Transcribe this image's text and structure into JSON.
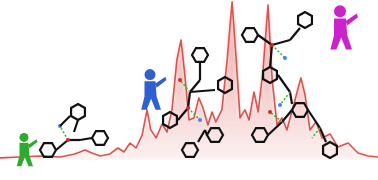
{
  "chart_data": {
    "type": "line",
    "x": [
      0,
      5.3,
      10.6,
      15.9,
      19.8,
      22.5,
      24.3,
      26.5,
      29.1,
      31.2,
      32.8,
      34.4,
      36,
      37.6,
      38.9,
      39.9,
      41.3,
      42.9,
      44.2,
      45.5,
      46.8,
      47.9,
      48.9,
      50,
      51.3,
      52.6,
      53.7,
      55,
      56.1,
      57.1,
      58.7,
      60.1,
      61.4,
      62.4,
      63.5,
      64.8,
      65.9,
      67.2,
      68.3,
      69.6,
      70.9,
      72,
      73.3,
      74.6,
      75.9,
      77.2,
      78.6,
      79.6,
      80.7,
      82,
      83.6,
      85.2,
      87.3,
      89.4,
      92.1,
      94.7,
      97.4,
      100
    ],
    "values": [
      1.3,
      1.9,
      2.5,
      1.9,
      3.8,
      6.3,
      4.4,
      2.5,
      3.8,
      7.5,
      5,
      10.6,
      7.5,
      15.6,
      31.3,
      18.8,
      13.8,
      22.5,
      17.5,
      31.3,
      62.5,
      75,
      53.1,
      25,
      26.3,
      38.8,
      32.5,
      21.9,
      30,
      23.8,
      31.3,
      62.5,
      98.8,
      65.6,
      26.3,
      31.3,
      25,
      42.5,
      30,
      56.3,
      96.9,
      50,
      21.9,
      26.3,
      18.8,
      30,
      42.5,
      51.3,
      40.6,
      18.8,
      23.8,
      13.8,
      16.3,
      8.1,
      10.6,
      4.4,
      2.5,
      1.9
    ],
    "color": "#d9534f",
    "xlim": [
      0,
      100
    ],
    "ylim": [
      0,
      100
    ],
    "tick_labels": false
  }
}
